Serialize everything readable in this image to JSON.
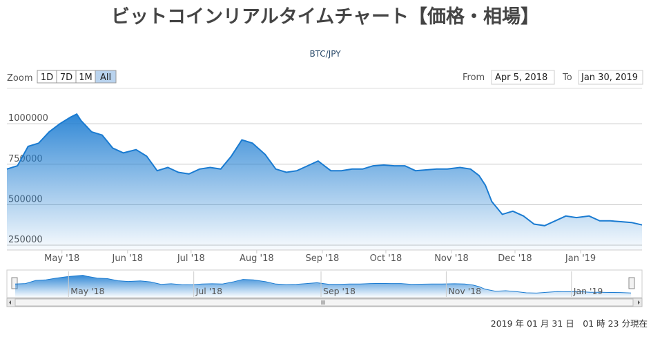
{
  "header": {
    "title": "ビットコインリアルタイムチャート【価格・相場】"
  },
  "controls": {
    "zoom_label": "Zoom",
    "zoom_buttons": [
      "1D",
      "7D",
      "1M",
      "All"
    ],
    "from_label": "From",
    "from_value": "Apr 5, 2018",
    "to_label": "To",
    "to_value": "Jan 30, 2019"
  },
  "chart_data": {
    "type": "area",
    "subtitle": "BTC/JPY",
    "color": "#1a7bd1",
    "grid": true,
    "x": [
      "2018-04-05",
      "2018-04-10",
      "2018-04-15",
      "2018-04-20",
      "2018-04-25",
      "2018-04-30",
      "2018-05-05",
      "2018-05-08",
      "2018-05-10",
      "2018-05-15",
      "2018-05-20",
      "2018-05-25",
      "2018-05-30",
      "2018-06-05",
      "2018-06-10",
      "2018-06-15",
      "2018-06-20",
      "2018-06-25",
      "2018-06-30",
      "2018-07-05",
      "2018-07-10",
      "2018-07-15",
      "2018-07-20",
      "2018-07-25",
      "2018-07-30",
      "2018-08-05",
      "2018-08-10",
      "2018-08-15",
      "2018-08-20",
      "2018-08-25",
      "2018-08-30",
      "2018-09-05",
      "2018-09-10",
      "2018-09-15",
      "2018-09-20",
      "2018-09-25",
      "2018-09-30",
      "2018-10-05",
      "2018-10-10",
      "2018-10-15",
      "2018-10-20",
      "2018-10-25",
      "2018-10-30",
      "2018-11-05",
      "2018-11-10",
      "2018-11-14",
      "2018-11-17",
      "2018-11-20",
      "2018-11-25",
      "2018-11-30",
      "2018-12-05",
      "2018-12-10",
      "2018-12-15",
      "2018-12-20",
      "2018-12-25",
      "2018-12-30",
      "2019-01-05",
      "2019-01-10",
      "2019-01-15",
      "2019-01-20",
      "2019-01-25",
      "2019-01-30"
    ],
    "values": [
      720000,
      740000,
      860000,
      880000,
      950000,
      1000000,
      1040000,
      1060000,
      1020000,
      950000,
      930000,
      850000,
      820000,
      840000,
      800000,
      710000,
      730000,
      700000,
      690000,
      720000,
      730000,
      720000,
      800000,
      900000,
      880000,
      810000,
      720000,
      700000,
      710000,
      740000,
      770000,
      710000,
      710000,
      720000,
      720000,
      740000,
      745000,
      740000,
      740000,
      710000,
      715000,
      720000,
      720000,
      730000,
      720000,
      680000,
      620000,
      520000,
      440000,
      460000,
      430000,
      380000,
      370000,
      400000,
      430000,
      420000,
      430000,
      400000,
      400000,
      395000,
      390000,
      375000
    ],
    "xlim": [
      "2018-04-05",
      "2019-01-30"
    ],
    "xticks": [
      {
        "value": "2018-05-01",
        "label": "May '18"
      },
      {
        "value": "2018-06-01",
        "label": "Jun '18"
      },
      {
        "value": "2018-07-01",
        "label": "Jul '18"
      },
      {
        "value": "2018-08-01",
        "label": "Aug '18"
      },
      {
        "value": "2018-09-01",
        "label": "Sep '18"
      },
      {
        "value": "2018-10-01",
        "label": "Oct '18"
      },
      {
        "value": "2018-11-01",
        "label": "Nov '18"
      },
      {
        "value": "2018-12-01",
        "label": "Dec '18"
      },
      {
        "value": "2019-01-01",
        "label": "Jan '19"
      }
    ],
    "navigator_xticks": [
      {
        "value": "2018-05-01",
        "label": "May '18"
      },
      {
        "value": "2018-07-01",
        "label": "Jul '18"
      },
      {
        "value": "2018-09-01",
        "label": "Sep '18"
      },
      {
        "value": "2018-11-01",
        "label": "Nov '18"
      },
      {
        "value": "2019-01-01",
        "label": "Jan '19"
      }
    ],
    "ylim": [
      220000,
      1210000
    ],
    "yticks": [
      250000,
      500000,
      750000,
      1000000
    ]
  },
  "footer": {
    "timestamp": "2019 年 01 月 31 日　01 時 23 分現在"
  }
}
